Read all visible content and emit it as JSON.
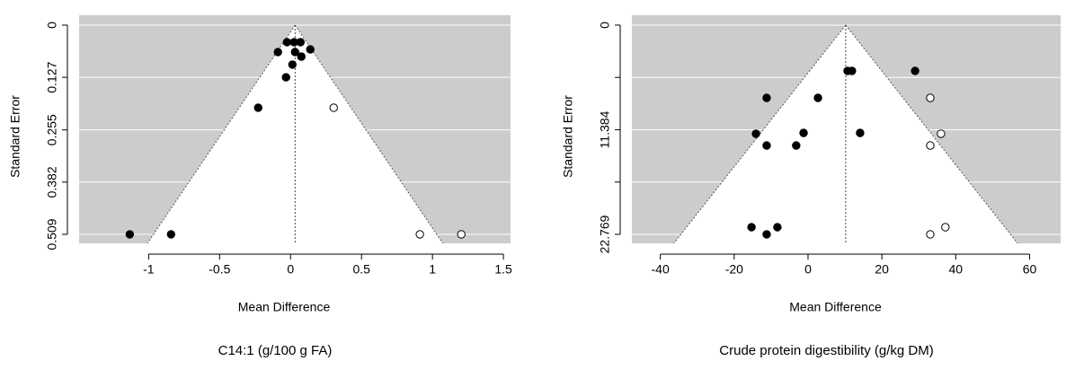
{
  "chart_data": [
    {
      "type": "scatter",
      "title": "C14:1 (g/100 g FA)",
      "xlabel": "Mean Difference",
      "ylabel": "Standard Error",
      "xlim": [
        -1.49,
        1.55
      ],
      "xticks": [
        -1,
        -0.5,
        0,
        0.5,
        1,
        1.5
      ],
      "ylim": [
        0.531,
        -0.024
      ],
      "yticks": [
        0,
        0.127,
        0.255,
        0.382,
        0.509
      ],
      "grid": true,
      "reference_line": 0.032,
      "series": [
        {
          "color": "#000000",
          "x": [
            -0.025,
            0.025,
            0.07,
            -0.089,
            0.032,
            0.139,
            0.076,
            0.013,
            -0.032,
            -0.228,
            -1.133,
            -0.842
          ],
          "values": [
            0.0415,
            0.0415,
            0.0415,
            0.0655,
            0.0655,
            0.059,
            0.0765,
            0.096,
            0.127,
            0.201,
            0.509,
            0.509
          ]
        },
        {
          "color": "#ffffff",
          "x": [
            0.304,
            0.911,
            1.203
          ],
          "values": [
            0.201,
            0.509,
            0.509
          ]
        }
      ]
    },
    {
      "type": "scatter",
      "title": "Crude protein digestibility (g/kg DM)",
      "xlabel": "Mean Difference",
      "ylabel": "Standard Error",
      "xlim": [
        -47.7,
        68.4
      ],
      "xticks": [
        -40,
        -20,
        0,
        20,
        40,
        60
      ],
      "ylim": [
        23.75,
        -1.07
      ],
      "yticks": [
        0,
        {
          "value": 5.692,
          "label": null
        },
        11.384,
        {
          "value": 17.077,
          "label": null
        },
        22.769
      ],
      "grid": true,
      "reference_line": 10.2,
      "series": [
        {
          "color": "#000000",
          "x": [
            10.7,
            11.9,
            29.0,
            -11.2,
            2.7,
            -14.1,
            -1.2,
            14.1,
            -11.2,
            -3.2,
            -15.3,
            -8.3,
            -11.2
          ],
          "values": [
            4.98,
            4.98,
            4.98,
            7.92,
            7.92,
            11.82,
            11.73,
            11.73,
            13.1,
            13.1,
            21.99,
            21.99,
            22.77
          ]
        },
        {
          "color": "#ffffff",
          "x": [
            33.1,
            36.0,
            33.1,
            37.2,
            33.1
          ],
          "values": [
            7.92,
            11.82,
            13.1,
            21.99,
            22.77
          ]
        }
      ]
    }
  ]
}
